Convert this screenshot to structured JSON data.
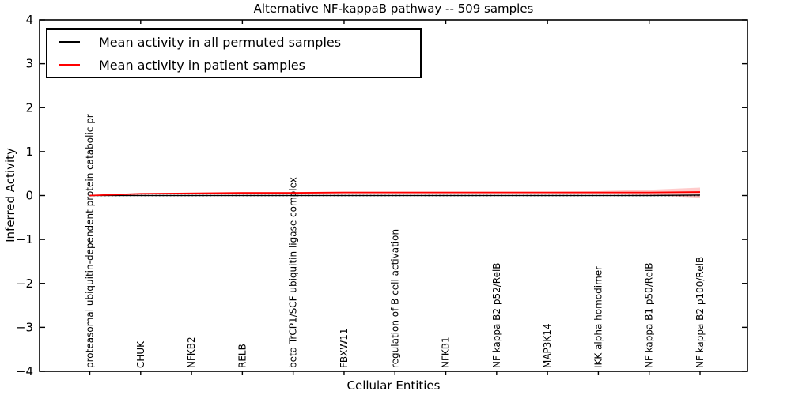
{
  "chart_data": {
    "type": "line",
    "title": "Alternative NF-kappaB pathway -- 509 samples",
    "xlabel": "Cellular Entities",
    "ylabel": "Inferred Activity",
    "ylim": [
      -4,
      4
    ],
    "yticks": [
      -4,
      -3,
      -2,
      -1,
      0,
      1,
      2,
      3,
      4
    ],
    "grid": false,
    "legend_position": "upper-left",
    "zero_line": {
      "style": "dotted",
      "y": 0,
      "color": "#000000"
    },
    "categories": [
      "proteasomal ubiquitin-dependent protein catabolic pr",
      "CHUK",
      "NFKB2",
      "RELB",
      "beta TrCP1/SCF ubiquitin ligase complex",
      "FBXW11",
      "regulation of B cell activation",
      "NFKB1",
      "NF kappa B2 p52/RelB",
      "MAP3K14",
      "IKK alpha homodimer",
      "NF kappa B1 p50/RelB",
      "NF kappa B2 p100/RelB"
    ],
    "series": [
      {
        "name": "Mean activity in all permuted samples",
        "color": "#000000",
        "band_color": "rgba(0,0,0,0.12)",
        "values": [
          0,
          0,
          0,
          0,
          0,
          0,
          0,
          0,
          0,
          0,
          0,
          0,
          0.01
        ],
        "band_upper": [
          0.01,
          0.015,
          0.015,
          0.015,
          0.015,
          0.015,
          0.015,
          0.015,
          0.015,
          0.015,
          0.015,
          0.02,
          0.05
        ],
        "band_lower": [
          -0.01,
          -0.015,
          -0.015,
          -0.015,
          -0.015,
          -0.015,
          -0.015,
          -0.015,
          -0.015,
          -0.015,
          -0.015,
          -0.02,
          -0.03
        ]
      },
      {
        "name": "Mean activity in patient samples",
        "color": "#ff0000",
        "band_color": "rgba(255,0,0,0.2)",
        "values": [
          0,
          0.04,
          0.05,
          0.06,
          0.06,
          0.07,
          0.07,
          0.07,
          0.07,
          0.07,
          0.07,
          0.07,
          0.08
        ],
        "band_upper": [
          0.01,
          0.05,
          0.07,
          0.08,
          0.08,
          0.09,
          0.09,
          0.09,
          0.09,
          0.09,
          0.1,
          0.13,
          0.18
        ],
        "band_lower": [
          -0.01,
          0.02,
          0.03,
          0.04,
          0.04,
          0.05,
          0.05,
          0.05,
          0.05,
          0.05,
          0.04,
          0.01,
          -0.05
        ]
      }
    ]
  }
}
